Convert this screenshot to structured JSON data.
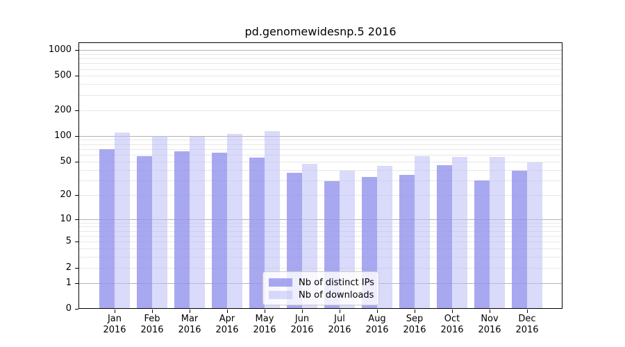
{
  "chart_data": {
    "type": "bar",
    "title": "pd.genomewidesnp.5 2016",
    "categories": [
      "Jan 2016",
      "Feb 2016",
      "Mar 2016",
      "Apr 2016",
      "May 2016",
      "Jun 2016",
      "Jul 2016",
      "Aug 2016",
      "Sep 2016",
      "Oct 2016",
      "Nov 2016",
      "Dec 2016"
    ],
    "series": [
      {
        "name": "Nb of distinct IPs",
        "color": "rgba(146,146,238,0.8)",
        "values": [
          70,
          58,
          66,
          64,
          56,
          37,
          29,
          33,
          35,
          45,
          30,
          39
        ]
      },
      {
        "name": "Nb of downloads",
        "color": "rgba(188,188,246,0.55)",
        "values": [
          110,
          100,
          97,
          105,
          113,
          47,
          39,
          44,
          58,
          57,
          57,
          49
        ]
      }
    ],
    "xlabel": "",
    "ylabel": "",
    "yscale": "log1p",
    "yticks": [
      0,
      1,
      2,
      5,
      10,
      20,
      50,
      100,
      200,
      500,
      1000
    ],
    "ylim": [
      0,
      1227
    ],
    "grid": true,
    "major_grid_color": "#b2b2b2",
    "minor_grid_color": "#e7e7e7",
    "axis_color": "#000000",
    "legend_position": "lower center"
  }
}
